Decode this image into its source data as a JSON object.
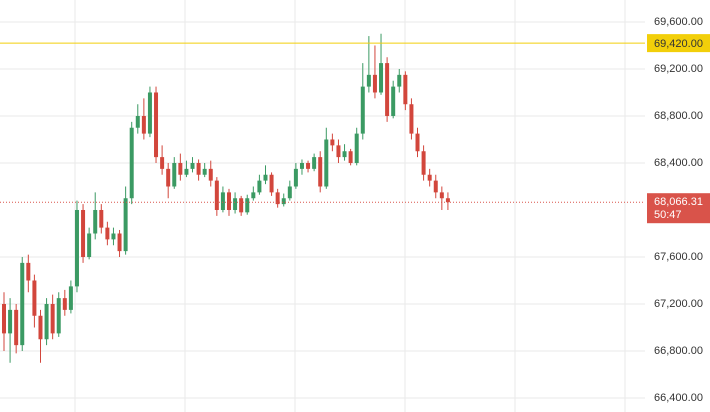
{
  "chart_data": {
    "type": "candlestick",
    "open": [
      67200,
      66950,
      67150,
      66850,
      67550,
      67400,
      67100,
      66900,
      67200,
      66950,
      67250,
      67150,
      67350,
      68000,
      67600,
      67800,
      68000,
      67850,
      67750,
      67800,
      67650,
      68100,
      68700,
      68800,
      68650,
      69000,
      68450,
      68350,
      68200,
      68400,
      68300,
      68350,
      68400,
      68300,
      68350,
      68250,
      68000,
      68150,
      68000,
      68100,
      67980,
      68100,
      68150,
      68250,
      68300,
      68150,
      68050,
      68100,
      68200,
      68350,
      68400,
      68350,
      68450,
      68200,
      68600,
      68550,
      68450,
      68500,
      68400,
      68650,
      69050,
      69150,
      69000,
      69250,
      68800,
      69050,
      69150,
      68900,
      68650,
      68500,
      68300,
      68250,
      68150,
      68100
    ],
    "high": [
      67300,
      67250,
      67200,
      67600,
      67620,
      67450,
      67150,
      67250,
      67280,
      67300,
      67320,
      67400,
      68080,
      68050,
      67850,
      68150,
      68050,
      67900,
      67850,
      67830,
      68200,
      68750,
      68900,
      68950,
      69050,
      69050,
      68550,
      68400,
      68450,
      68480,
      68420,
      68450,
      68430,
      68400,
      68420,
      68280,
      68200,
      68180,
      68150,
      68120,
      68130,
      68200,
      68300,
      68380,
      68320,
      68180,
      68140,
      68250,
      68400,
      68430,
      68420,
      68480,
      68500,
      68700,
      68650,
      68600,
      68560,
      68520,
      68700,
      69250,
      69480,
      69400,
      69500,
      69300,
      69100,
      69200,
      69180,
      68950,
      68700,
      68550,
      68350,
      68300,
      68200,
      68150
    ],
    "low": [
      66800,
      66700,
      66780,
      66800,
      67300,
      67000,
      66700,
      66850,
      66900,
      66920,
      67100,
      67120,
      67300,
      67550,
      67580,
      67750,
      67800,
      67700,
      67700,
      67600,
      67620,
      68050,
      68650,
      68600,
      68620,
      68400,
      68300,
      68100,
      68180,
      68250,
      68280,
      68320,
      68250,
      68280,
      68200,
      67950,
      67980,
      67950,
      67970,
      67950,
      67960,
      68080,
      68130,
      68220,
      68120,
      68020,
      68030,
      68080,
      68180,
      68300,
      68320,
      68330,
      68150,
      68180,
      68500,
      68400,
      68420,
      68380,
      68380,
      68600,
      69000,
      68950,
      68980,
      68750,
      68780,
      69000,
      68850,
      68600,
      68450,
      68250,
      68200,
      68100,
      68000,
      68000
    ],
    "close": [
      66950,
      67150,
      66850,
      67550,
      67400,
      67100,
      66900,
      67200,
      66950,
      67250,
      67150,
      67350,
      68000,
      67600,
      67800,
      68000,
      67850,
      67750,
      67800,
      67650,
      68100,
      68700,
      68800,
      68650,
      69000,
      68450,
      68350,
      68200,
      68400,
      68300,
      68350,
      68400,
      68300,
      68350,
      68250,
      68000,
      68150,
      68000,
      68100,
      67980,
      68100,
      68150,
      68250,
      68300,
      68150,
      68050,
      68100,
      68200,
      68350,
      68400,
      68350,
      68450,
      68200,
      68600,
      68550,
      68450,
      68500,
      68400,
      68650,
      69050,
      69150,
      69000,
      69250,
      68800,
      69050,
      69150,
      68900,
      68650,
      68500,
      68300,
      68250,
      68150,
      68100,
      68066.31
    ],
    "up_color": "#3b9a63",
    "down_color": "#d2463c",
    "ylim": [
      66281,
      69787
    ],
    "yticks": [
      {
        "value": 66400,
        "label": "66,400.00"
      },
      {
        "value": 66800,
        "label": "66,800.00"
      },
      {
        "value": 67200,
        "label": "67,200.00"
      },
      {
        "value": 67600,
        "label": "67,600.00"
      },
      {
        "value": 68400,
        "label": "68,400.00"
      },
      {
        "value": 68800,
        "label": "68,800.00"
      },
      {
        "value": 69200,
        "label": "69,200.00"
      },
      {
        "value": 69600,
        "label": "69,600.00"
      }
    ],
    "grid": true,
    "hline": {
      "value": 69420,
      "label": "69,420.00",
      "color": "#f2cf0a"
    },
    "last_price": {
      "value": 68066.31,
      "label": "68,066.31",
      "color": "#d9534a"
    },
    "countdown": "50:47"
  }
}
